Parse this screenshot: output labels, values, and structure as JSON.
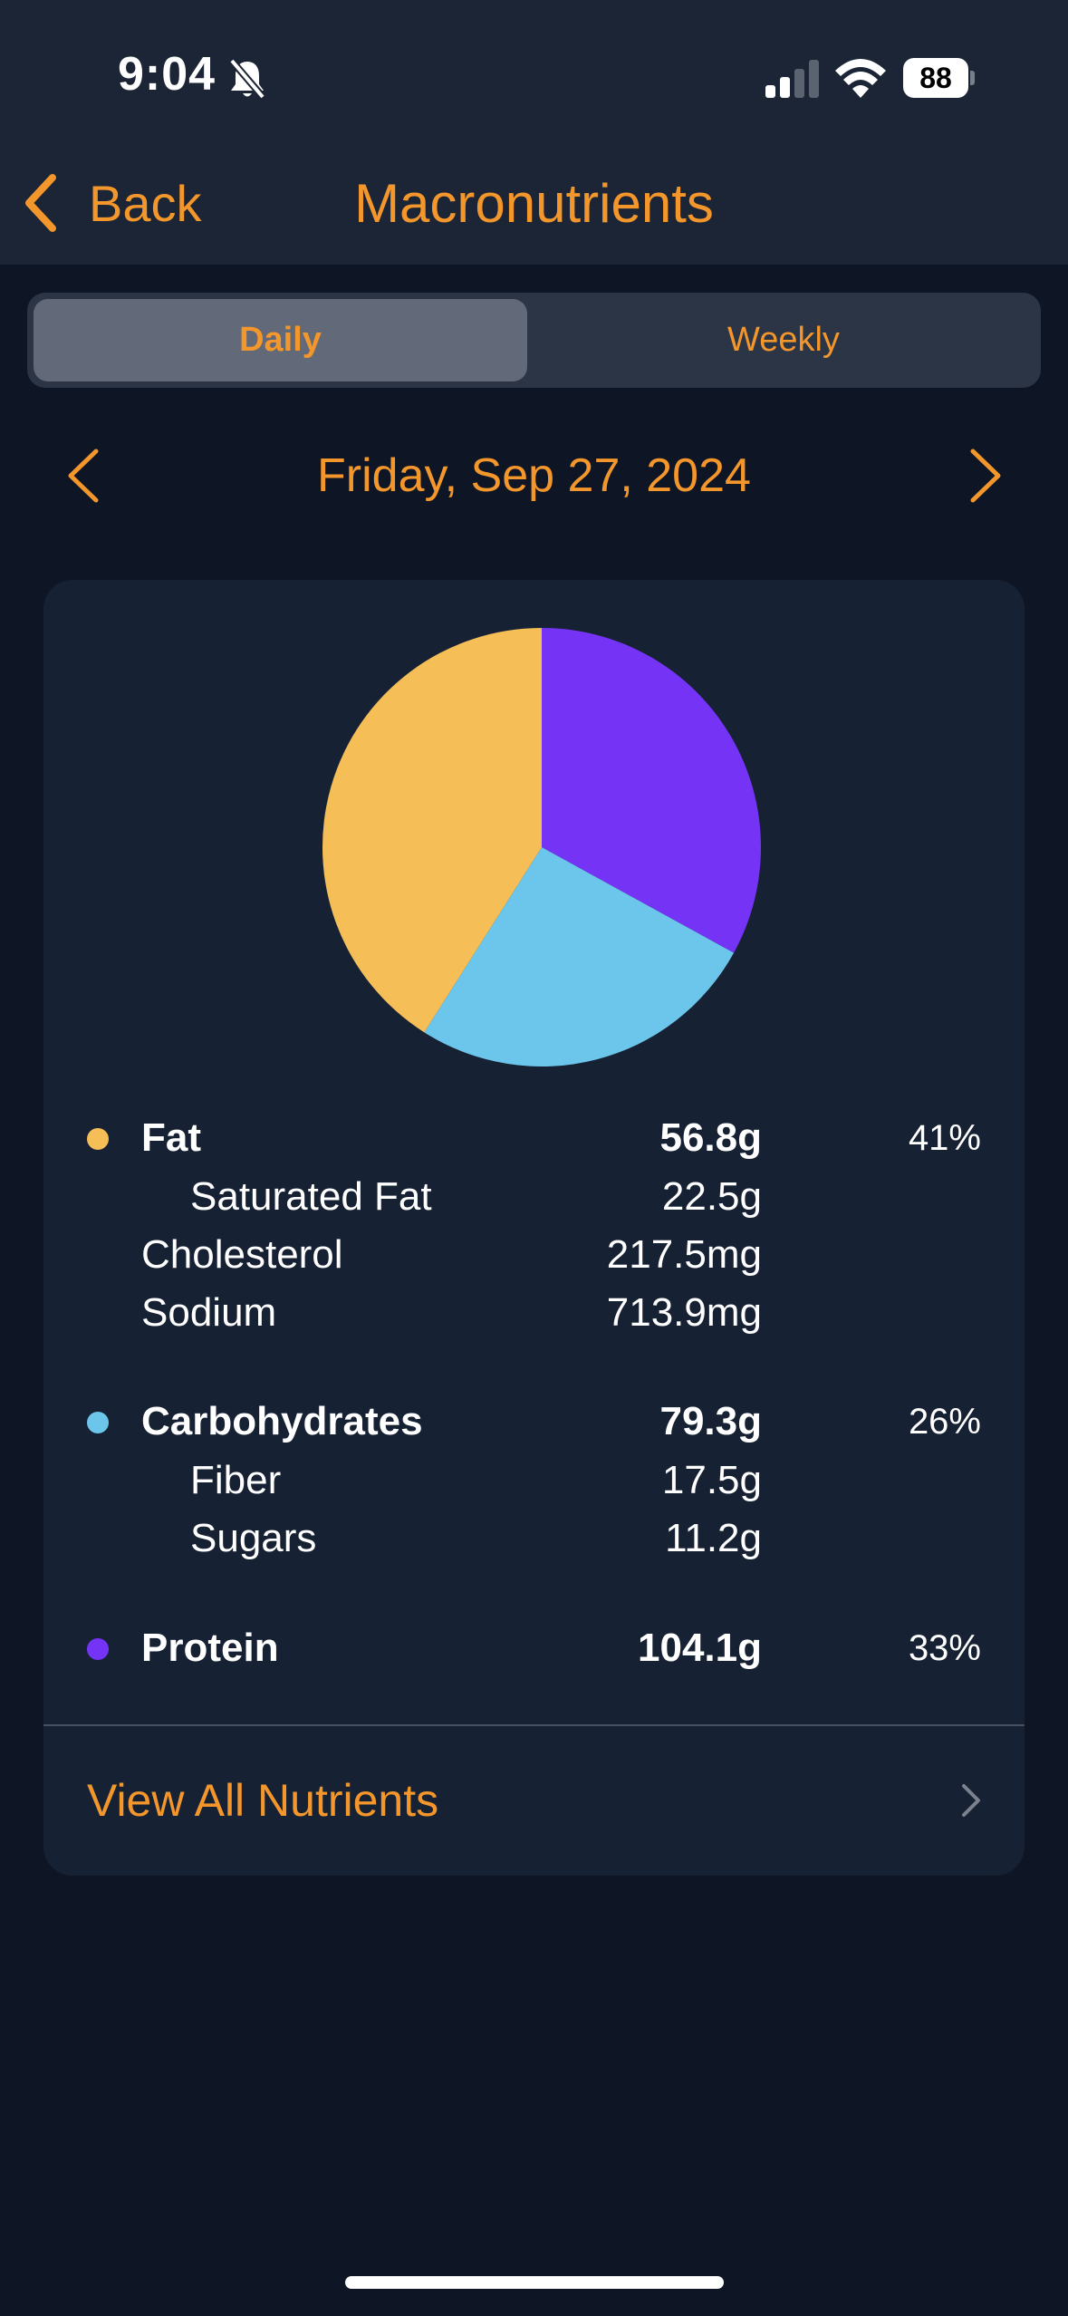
{
  "status_bar": {
    "time": "9:04",
    "battery": "88",
    "icons": [
      "bell-slash-icon",
      "cellular-signal-icon",
      "wifi-icon",
      "battery-icon"
    ]
  },
  "header": {
    "back_label": "Back",
    "title": "Macronutrients"
  },
  "segments": {
    "daily": "Daily",
    "weekly": "Weekly",
    "selected": "Daily"
  },
  "date_nav": {
    "date": "Friday, Sep 27, 2024"
  },
  "chart_data": {
    "type": "pie",
    "slices": [
      {
        "name": "Protein",
        "percent": 33,
        "color": "#7534f5"
      },
      {
        "name": "Carbohydrates",
        "percent": 26,
        "color": "#6cc5ea"
      },
      {
        "name": "Fat",
        "percent": 41,
        "color": "#f5be57"
      }
    ]
  },
  "nutrients": {
    "fat": {
      "label": "Fat",
      "value": "56.8g",
      "percent": "41%",
      "color": "#f5be57"
    },
    "saturated_fat": {
      "label": "Saturated Fat",
      "value": "22.5g"
    },
    "cholesterol": {
      "label": "Cholesterol",
      "value": "217.5mg"
    },
    "sodium": {
      "label": "Sodium",
      "value": "713.9mg"
    },
    "carbohydrates": {
      "label": "Carbohydrates",
      "value": "79.3g",
      "percent": "26%",
      "color": "#6cc5ea"
    },
    "fiber": {
      "label": "Fiber",
      "value": "17.5g"
    },
    "sugars": {
      "label": "Sugars",
      "value": "11.2g"
    },
    "protein": {
      "label": "Protein",
      "value": "104.1g",
      "percent": "33%",
      "color": "#7534f5"
    }
  },
  "view_all": {
    "label": "View All Nutrients"
  },
  "colors": {
    "accent": "#f3962c",
    "background": "#0e1626",
    "card": "#162133",
    "header": "#1b2535"
  }
}
